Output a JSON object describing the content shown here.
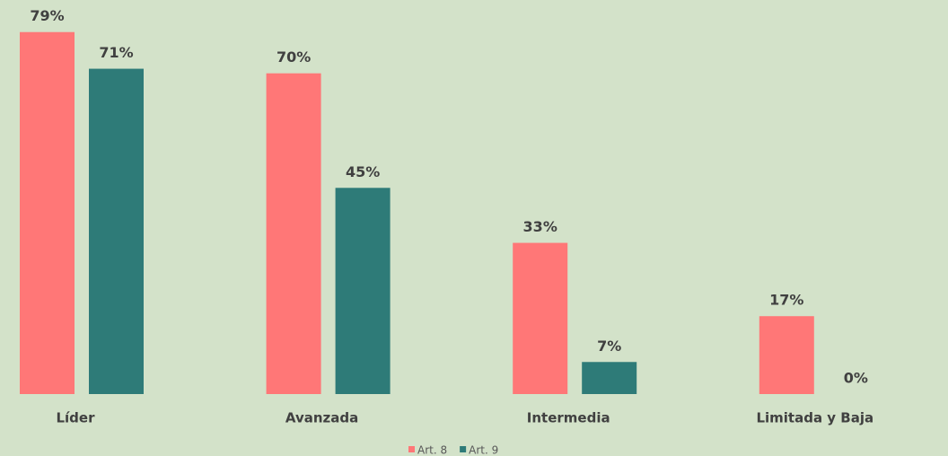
{
  "chart_data": {
    "type": "bar",
    "categories": [
      "Líder",
      "Avanzada",
      "Intermedia",
      "Limitada y Baja"
    ],
    "series": [
      {
        "name": "Art. 8",
        "color": "#ff7777",
        "values": [
          79,
          70,
          33,
          17
        ],
        "value_labels": [
          "79%",
          "70%",
          "33%",
          "17%"
        ]
      },
      {
        "name": "Art. 9",
        "color": "#2e7b78",
        "values": [
          71,
          45,
          7,
          0
        ],
        "value_labels": [
          "71%",
          "45%",
          "7%",
          "0%"
        ]
      }
    ],
    "ylim": [
      0,
      86
    ]
  }
}
